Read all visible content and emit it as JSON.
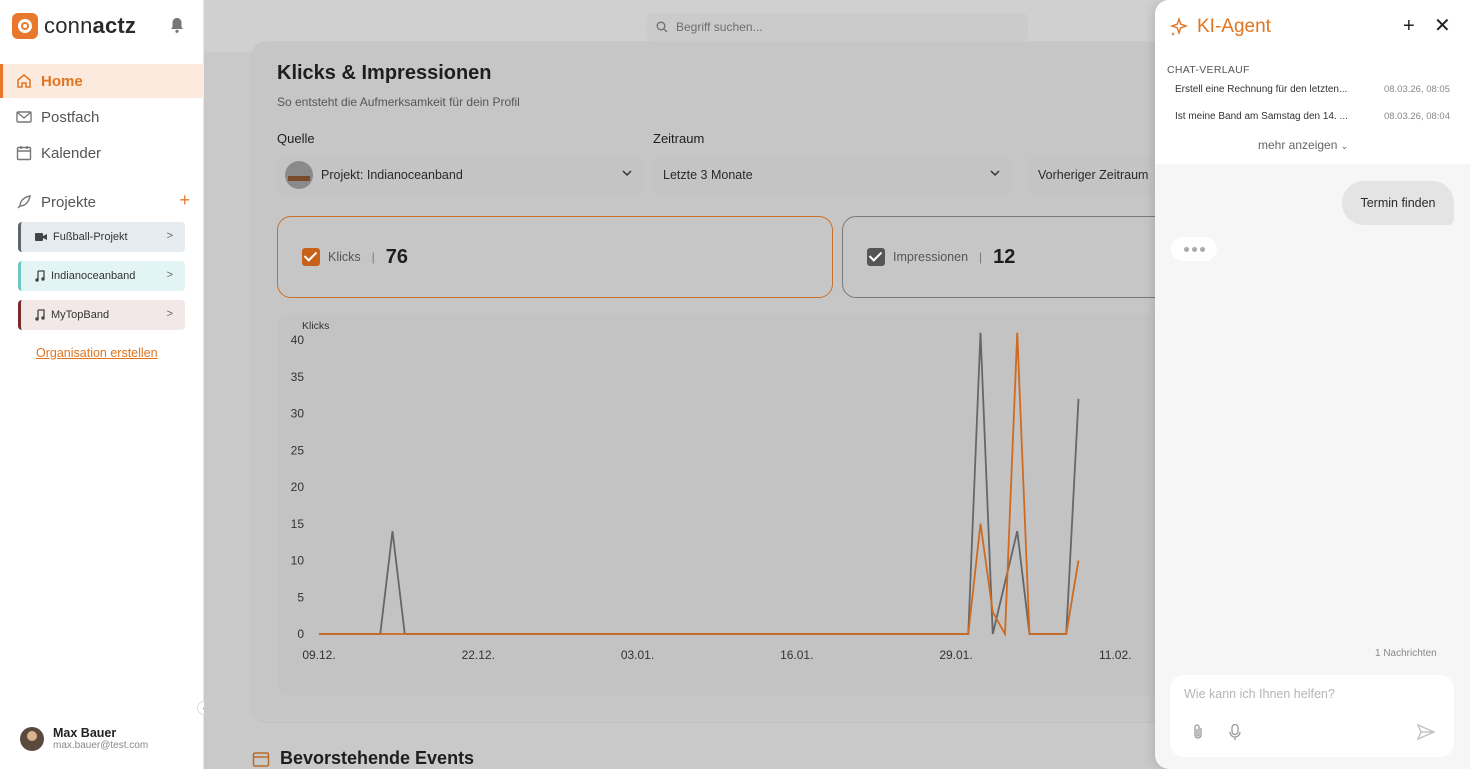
{
  "app": {
    "logo_prefix": "conn",
    "logo_suffix": "actz"
  },
  "sidebar": {
    "nav": [
      {
        "label": "Home",
        "icon": "home-icon"
      },
      {
        "label": "Postfach",
        "icon": "mail-icon"
      },
      {
        "label": "Kalender",
        "icon": "calendar-icon"
      }
    ],
    "projects_label": "Projekte",
    "projects": [
      {
        "label": "Fußball-Projekt",
        "icon": "video-icon",
        "color": "#5c6670"
      },
      {
        "label": "Indianoceanband",
        "icon": "music-note-icon",
        "color": "#6fc6c6"
      },
      {
        "label": "MyTopBand",
        "icon": "music-note-icon",
        "color": "#7a2a2a"
      }
    ],
    "org_link": "Organisation erstellen",
    "user": {
      "name": "Max Bauer",
      "email": "max.bauer@test.com"
    }
  },
  "search": {
    "placeholder": "Begriff suchen..."
  },
  "main": {
    "title": "Klicks & Impressionen",
    "subtitle": "So entsteht die Aufmerksamkeit für dein Profil",
    "source_label": "Quelle",
    "source_value": "Projekt: Indianoceanband",
    "period_label": "Zeitraum",
    "period_value": "Letzte 3 Monate",
    "compare_value": "Vorheriger Zeitraum",
    "metrics": [
      {
        "label": "Klicks",
        "value": "76",
        "color": "#d06a1e"
      },
      {
        "label": "Impressionen",
        "value": "12",
        "color": "#555555"
      }
    ],
    "events_title": "Bevorstehende Events"
  },
  "chart_data": {
    "type": "line",
    "ylabel": "Klicks",
    "ylim": [
      0,
      40
    ],
    "yticks": [
      "0",
      "5",
      "10",
      "15",
      "20",
      "25",
      "30",
      "35",
      "40"
    ],
    "xtick_labels": [
      "09.12.",
      "22.12.",
      "03.01.",
      "16.01.",
      "29.01.",
      "11.02."
    ],
    "series": [
      {
        "color": "#666666",
        "points": [
          [
            0,
            0
          ],
          [
            5,
            0
          ],
          [
            6,
            14
          ],
          [
            7,
            0
          ],
          [
            20,
            0
          ],
          [
            35,
            0
          ],
          [
            53,
            0
          ],
          [
            54,
            41
          ],
          [
            55,
            0
          ],
          [
            57,
            14
          ],
          [
            58,
            0
          ],
          [
            61,
            0
          ],
          [
            62,
            32
          ]
        ]
      },
      {
        "color": "#d06a1e",
        "points": [
          [
            0,
            0
          ],
          [
            5,
            0
          ],
          [
            7,
            0
          ],
          [
            20,
            0
          ],
          [
            35,
            0
          ],
          [
            53,
            0
          ],
          [
            54,
            15
          ],
          [
            55,
            3
          ],
          [
            56,
            0
          ],
          [
            57,
            41
          ],
          [
            58,
            0
          ],
          [
            61,
            0
          ],
          [
            62,
            10
          ]
        ]
      }
    ]
  },
  "panel": {
    "title": "KI-Agent",
    "history_label": "CHAT-VERLAUF",
    "history": [
      {
        "text": "Erstell eine Rechnung für den letzten...",
        "date": "08.03.26, 08:05"
      },
      {
        "text": "Ist meine Band am Samstag den 14. ...",
        "date": "08.03.26, 08:04"
      }
    ],
    "more": "mehr anzeigen",
    "user_message": "Termin finden",
    "message_count": "1 Nachrichten",
    "input_placeholder": "Wie kann ich Ihnen helfen?"
  }
}
